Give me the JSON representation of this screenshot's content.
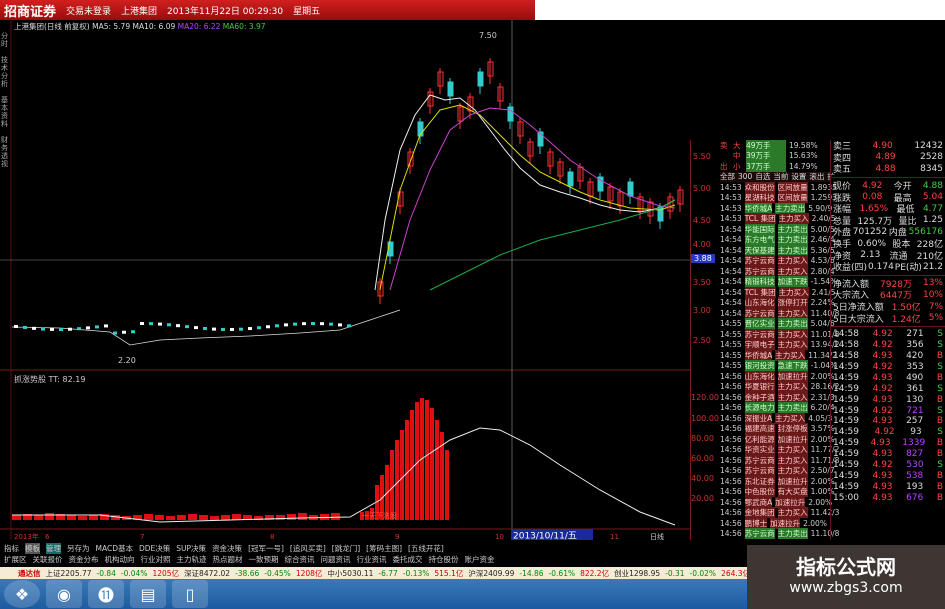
{
  "titlebar": {
    "logo": "招商证券",
    "menu": "交易未登录",
    "stock": "上港集团",
    "datetime": "2013年11月22日 00:29:30",
    "weekday": "星期五"
  },
  "chart": {
    "legend": "上港集团(日线 前复权) MA5: 5.79 MA10: 6.09",
    "ma20": "MA20: 6.22",
    "ma60": "MA60: 3.97",
    "high_label": "7.50",
    "low_label": "2.20",
    "indicator_label": "抓涨势股 TT: 82.19",
    "signal_label": "一天下洗股",
    "date_marker": "2013/10/11/五",
    "axis_labels": [
      "2013年",
      "6",
      "7",
      "8",
      "9",
      "10",
      "11"
    ],
    "price_axis": [
      "5.50",
      "5.00",
      "4.50",
      "4.00",
      "3.50",
      "3.00",
      "2.50"
    ],
    "indicator_axis": [
      "120.00",
      "100.00",
      "80.00",
      "60.00",
      "40.00",
      "20.00"
    ],
    "current_price_marker": "3.88",
    "side_tabs": [
      "分时",
      "技术分析",
      "基本资料",
      "财务透视"
    ],
    "day_label": "日线"
  },
  "colors": {
    "titlebar": "#b01515",
    "up": "#ff2020",
    "down": "#30d0d0",
    "background": "#000000"
  },
  "ticker": {
    "header": [
      "全部",
      "300",
      "自选",
      "当前",
      "设置",
      "滚出",
      "扩"
    ],
    "summary": [
      {
        "side": "卖",
        "size": "大",
        "vol": "49万手",
        "pct": "19.58%"
      },
      {
        "side": "",
        "size": "中",
        "vol": "39万手",
        "pct": "15.63%"
      },
      {
        "side": "出",
        "size": "小",
        "vol": "37万手",
        "pct": "14.79%"
      }
    ],
    "rows": [
      {
        "time": "14:53",
        "name": "众和股份",
        "type": "区间放量",
        "val": "1.8935",
        "c": "r"
      },
      {
        "time": "14:53",
        "name": "星湖科技",
        "type": "区间放量",
        "val": "1.2593",
        "c": "r"
      },
      {
        "time": "14:53",
        "name": "华侨城A",
        "type": "主力卖出",
        "val": "5.90/9",
        "c": "g"
      },
      {
        "time": "14:53",
        "name": "TCL 集团",
        "type": "主力买入",
        "val": "2.40/5",
        "c": "r"
      },
      {
        "time": "14:54",
        "name": "华能国际",
        "type": "主力卖出",
        "val": "5.00/5",
        "c": "g"
      },
      {
        "time": "14:54",
        "name": "东方电气",
        "type": "主力卖出",
        "val": "2.46/4",
        "c": "g"
      },
      {
        "time": "14:54",
        "name": "天保基建",
        "type": "主力卖出",
        "val": "5.36/5",
        "c": "g"
      },
      {
        "time": "14:54",
        "name": "苏宁云商",
        "type": "主力买入",
        "val": "4.53/6",
        "c": "r"
      },
      {
        "time": "14:54",
        "name": "苏宁云商",
        "type": "主力买入",
        "val": "2.80/4",
        "c": "r"
      },
      {
        "time": "14:54",
        "name": "精锻科技",
        "type": "加速下跌",
        "val": "-1.54%",
        "c": "g"
      },
      {
        "time": "14:54",
        "name": "TCL 集团",
        "type": "主力买入",
        "val": "2.41/5",
        "c": "r"
      },
      {
        "time": "14:54",
        "name": "山东海化",
        "type": "涨停打开",
        "val": "2.24%",
        "c": "r"
      },
      {
        "time": "14:54",
        "name": "苏宁云商",
        "type": "主力买入",
        "val": "11.40/8",
        "c": "r"
      },
      {
        "time": "14:55",
        "name": "晋亿实业",
        "type": "主力卖出",
        "val": "5.04/6",
        "c": "g"
      },
      {
        "time": "14:55",
        "name": "苏宁云商",
        "type": "主力买入",
        "val": "11.01/8",
        "c": "r"
      },
      {
        "time": "14:55",
        "name": "宇顺电子",
        "type": "主力买入",
        "val": "13.94/2",
        "c": "r"
      },
      {
        "time": "14:55",
        "name": "华侨城A",
        "type": "主力买入",
        "val": "11.34/2",
        "c": "r"
      },
      {
        "time": "14:55",
        "name": "银河投资",
        "type": "急速下跌",
        "val": "-1.04%",
        "c": "g"
      },
      {
        "time": "14:56",
        "name": "山东海化",
        "type": "加速拉升",
        "val": "2.00%",
        "c": "r"
      },
      {
        "time": "14:56",
        "name": "华夏银行",
        "type": "主力买入",
        "val": "28.16/2",
        "c": "r"
      },
      {
        "time": "14:56",
        "name": "金种子酒",
        "type": "主力买入",
        "val": "2.31/3",
        "c": "r"
      },
      {
        "time": "14:56",
        "name": "长源电力",
        "type": "主力卖出",
        "val": "6.20/4",
        "c": "g"
      },
      {
        "time": "14:56",
        "name": "深振业A",
        "type": "主力买入",
        "val": "4.05/3",
        "c": "r"
      },
      {
        "time": "14:56",
        "name": "福建高速",
        "type": "封涨停板",
        "val": "3.57%",
        "c": "r"
      },
      {
        "time": "14:56",
        "name": "亿利能源",
        "type": "加速拉升",
        "val": "2.00%",
        "c": "r"
      },
      {
        "time": "14:56",
        "name": "华资实业",
        "type": "主力买入",
        "val": "11.77/2",
        "c": "r"
      },
      {
        "time": "14:56",
        "name": "苏宁云商",
        "type": "主力买入",
        "val": "11.71/8",
        "c": "r"
      },
      {
        "time": "14:56",
        "name": "苏宁云商",
        "type": "主力买入",
        "val": "2.50/7",
        "c": "r"
      },
      {
        "time": "14:56",
        "name": "东北证券",
        "type": "加速拉升",
        "val": "2.00%",
        "c": "r"
      },
      {
        "time": "14:56",
        "name": "中色股份",
        "type": "有大买盘",
        "val": "1.00%",
        "c": "r"
      },
      {
        "time": "14:56",
        "name": "鄂武商A",
        "type": "加速拉升",
        "val": "2.00%",
        "c": "r"
      },
      {
        "time": "14:56",
        "name": "金地集团",
        "type": "主力买入",
        "val": "11.42/3",
        "c": "r"
      },
      {
        "time": "14:56",
        "name": "鹏博士",
        "type": "加速拉升",
        "val": "2.00%",
        "c": "r"
      },
      {
        "time": "14:56",
        "name": "苏宁云商",
        "type": "主力卖出",
        "val": "11.10/8",
        "c": "g"
      }
    ]
  },
  "quote": {
    "asks": [
      {
        "label": "卖三",
        "price": "4.90",
        "vol": "12432"
      },
      {
        "label": "卖四",
        "price": "4.89",
        "vol": "2528"
      },
      {
        "label": "卖五",
        "price": "4.88",
        "vol": "8345"
      }
    ],
    "stats": [
      {
        "l1": "现价",
        "v1": "4.92",
        "l2": "今开",
        "v2": "4.88"
      },
      {
        "l1": "涨跌",
        "v1": "0.08",
        "l2": "最高",
        "v2": "5.04"
      },
      {
        "l1": "涨幅",
        "v1": "1.65%",
        "l2": "最低",
        "v2": "4.77"
      },
      {
        "l1": "总量",
        "v1": "125.7万",
        "l2": "量比",
        "v2": "1.25"
      },
      {
        "l1": "外盘",
        "v1": "701252",
        "l2": "内盘",
        "v2": "556176"
      },
      {
        "l1": "换手",
        "v1": "0.60%",
        "l2": "股本",
        "v2": "228亿"
      },
      {
        "l1": "净资",
        "v1": "2.13",
        "l2": "流通",
        "v2": "210亿"
      },
      {
        "l1": "收益(四)",
        "v1": "0.174",
        "l2": "PE(动)",
        "v2": "21.2"
      }
    ],
    "flows": [
      {
        "label": "净流入额",
        "val": "7928万",
        "pct": "13%"
      },
      {
        "label": "大宗流入",
        "val": "6447万",
        "pct": "10%"
      },
      {
        "label": "5日净流入额",
        "val": "1.50亿",
        "pct": "7%"
      },
      {
        "label": "5日大宗流入",
        "val": "1.24亿",
        "pct": "5%"
      }
    ],
    "trades": [
      {
        "t": "14:58",
        "p": "4.92",
        "v": "271",
        "s": "S"
      },
      {
        "t": "14:58",
        "p": "4.92",
        "v": "356",
        "s": "S"
      },
      {
        "t": "14:58",
        "p": "4.93",
        "v": "420",
        "s": "B"
      },
      {
        "t": "14:59",
        "p": "4.92",
        "v": "353",
        "s": "S"
      },
      {
        "t": "14:59",
        "p": "4.93",
        "v": "490",
        "s": "B"
      },
      {
        "t": "14:59",
        "p": "4.92",
        "v": "361",
        "s": "S"
      },
      {
        "t": "14:59",
        "p": "4.93",
        "v": "130",
        "s": "B"
      },
      {
        "t": "14:59",
        "p": "4.92",
        "v": "721",
        "s": "S"
      },
      {
        "t": "14:59",
        "p": "4.93",
        "v": "257",
        "s": "B"
      },
      {
        "t": "14:59",
        "p": "4.92",
        "v": "93",
        "s": "S"
      },
      {
        "t": "14:59",
        "p": "4.93",
        "v": "1339",
        "s": "B"
      },
      {
        "t": "14:59",
        "p": "4.93",
        "v": "827",
        "s": "B"
      },
      {
        "t": "14:59",
        "p": "4.92",
        "v": "530",
        "s": "S"
      },
      {
        "t": "14:59",
        "p": "4.93",
        "v": "538",
        "s": "B"
      },
      {
        "t": "14:59",
        "p": "4.93",
        "v": "193",
        "s": "B"
      },
      {
        "t": "15:00",
        "p": "4.93",
        "v": "676",
        "s": "B"
      }
    ]
  },
  "tabs1": [
    "指标",
    "模板",
    "管理",
    "另存为",
    "MACD基本",
    "DDE决策",
    "SUP决策",
    "资金决策",
    "[冠军一号]",
    "[追风买卖]",
    "[跳龙门]",
    "[筹码主图]",
    "[五线开花]"
  ],
  "tabs2": [
    "扩展区",
    "关联报价",
    "资金分布",
    "机构动向",
    "行业对照",
    "主力轨迹",
    "热点题材",
    "一致预期",
    "综合资讯",
    "问题资讯",
    "行业资讯",
    "委托成交",
    "持仓股份",
    "账户资金"
  ],
  "status": {
    "app": "通达信",
    "items": [
      "上证2205.77",
      "-0.84",
      "-0.04%",
      "1205亿",
      "深证8472.02",
      "-38.66",
      "-0.45%",
      "1208亿",
      "中小5030.11",
      "-6.77",
      "-0.13%",
      "515.1亿",
      "沪深2409.99",
      "-14.86",
      "-0.61%",
      "822.2亿",
      "创业1298.95",
      "-0.31",
      "-0.02%",
      "264.3亿"
    ]
  },
  "watermark": {
    "title": "指标公式网",
    "url": "www.zbgs3.com"
  }
}
